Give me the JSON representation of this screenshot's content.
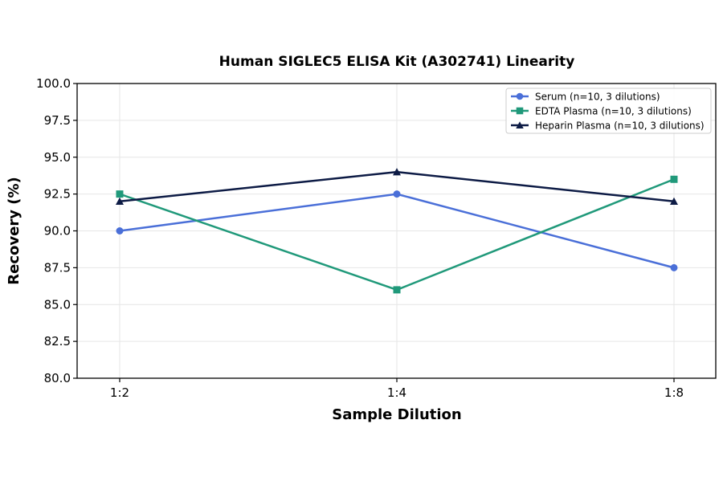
{
  "chart_data": {
    "type": "line",
    "title": "Human SIGLEC5 ELISA Kit (A302741) Linearity",
    "xlabel": "Sample Dilution",
    "ylabel": "Recovery (%)",
    "categories": [
      "1:2",
      "1:4",
      "1:8"
    ],
    "ylim": [
      80.0,
      100.0
    ],
    "yticks": [
      "80.0",
      "82.5",
      "85.0",
      "87.5",
      "90.0",
      "92.5",
      "95.0",
      "97.5",
      "100.0"
    ],
    "grid": true,
    "legend_position": "top-right",
    "series": [
      {
        "name": "Serum (n=10, 3 dilutions)",
        "values": [
          90.0,
          92.5,
          87.5
        ],
        "color": "#4a6fd8",
        "marker": "circle"
      },
      {
        "name": "EDTA Plasma (n=10, 3 dilutions)",
        "values": [
          92.5,
          86.0,
          93.5
        ],
        "color": "#20997a",
        "marker": "square"
      },
      {
        "name": "Heparin Plasma (n=10, 3 dilutions)",
        "values": [
          92.0,
          94.0,
          92.0
        ],
        "color": "#0d1b45",
        "marker": "triangle"
      }
    ]
  }
}
